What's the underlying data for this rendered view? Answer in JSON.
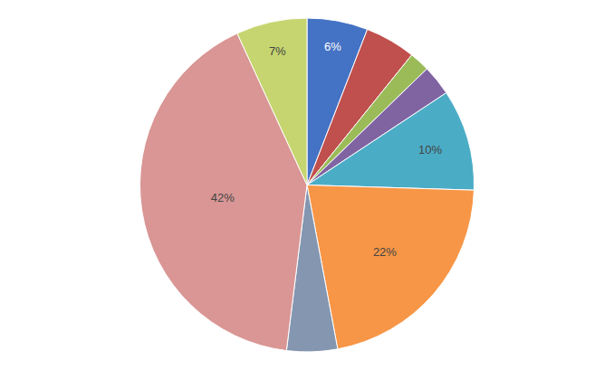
{
  "chart_data": {
    "type": "pie",
    "values": [
      6,
      5,
      2,
      3,
      10,
      22,
      5,
      42,
      7
    ],
    "value_labels": [
      "6%",
      null,
      null,
      null,
      "10%",
      "22%",
      null,
      "42%",
      "7%"
    ],
    "colors": [
      "#4472C4",
      "#C0504D",
      "#9BBB59",
      "#8064A2",
      "#4BACC6",
      "#F79646",
      "#8496B0",
      "#D99694",
      "#C6D56F"
    ]
  }
}
